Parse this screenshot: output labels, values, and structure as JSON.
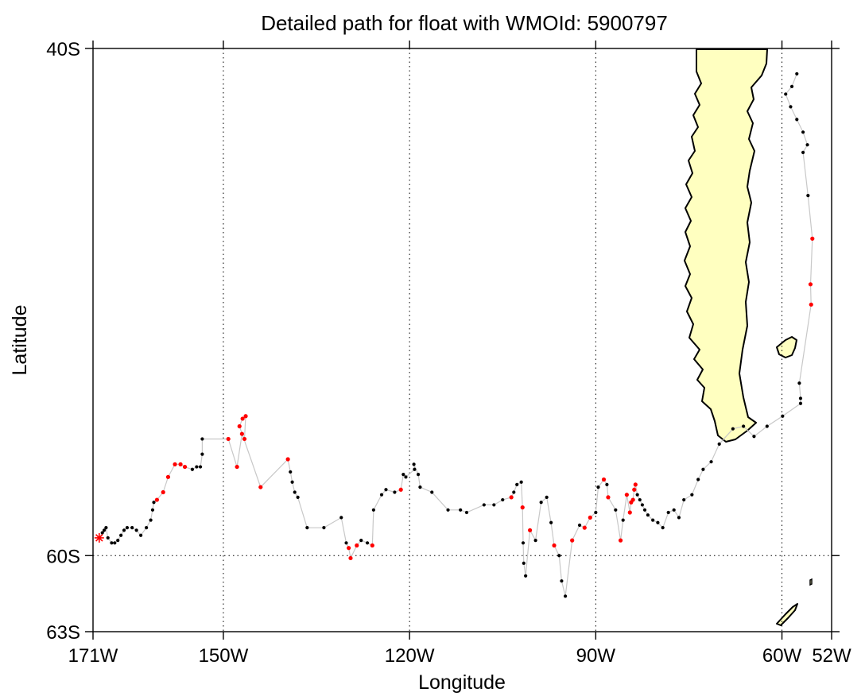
{
  "chart_data": {
    "type": "scatter",
    "title": "Detailed path for float with WMOId: 5900797",
    "xlabel": "Longitude",
    "ylabel": "Latitude",
    "xlim": [
      -171,
      -52
    ],
    "ylim": [
      -63,
      -40
    ],
    "x_ticks": [
      {
        "value": -171,
        "label": "171W"
      },
      {
        "value": -150,
        "label": "150W"
      },
      {
        "value": -120,
        "label": "120W"
      },
      {
        "value": -90,
        "label": "90W"
      },
      {
        "value": -60,
        "label": "60W"
      },
      {
        "value": -52,
        "label": "52W"
      }
    ],
    "y_ticks": [
      {
        "value": -40,
        "label": "40S"
      },
      {
        "value": -60,
        "label": "60S"
      },
      {
        "value": -63,
        "label": "63S"
      }
    ],
    "grid": "dotted",
    "colors": {
      "land": "#ffffc0",
      "coast": "#000000",
      "track_line": "#c8c8c8",
      "profile": "#000000",
      "profile_flagged": "#ff0000",
      "start_marker": "#ff0000"
    },
    "start": {
      "lon": -170,
      "lat": -59.3,
      "marker": "asterisk"
    },
    "track": [
      [
        -170.0,
        -59.3,
        "k"
      ],
      [
        -169.5,
        -59.1,
        "k"
      ],
      [
        -169.2,
        -59.0,
        "k"
      ],
      [
        -168.9,
        -58.9,
        "k"
      ],
      [
        -168.6,
        -59.3,
        "k"
      ],
      [
        -168.0,
        -59.5,
        "k"
      ],
      [
        -167.5,
        -59.5,
        "k"
      ],
      [
        -167.0,
        -59.4,
        "k"
      ],
      [
        -166.5,
        -59.2,
        "k"
      ],
      [
        -166.0,
        -59.0,
        "k"
      ],
      [
        -165.5,
        -58.9,
        "k"
      ],
      [
        -164.7,
        -58.9,
        "k"
      ],
      [
        -164.0,
        -59.0,
        "k"
      ],
      [
        -163.3,
        -59.2,
        "k"
      ],
      [
        -162.4,
        -58.9,
        "k"
      ],
      [
        -161.7,
        -58.6,
        "k"
      ],
      [
        -161.4,
        -58.2,
        "k"
      ],
      [
        -161.2,
        -57.9,
        "k"
      ],
      [
        -160.7,
        -57.8,
        "r"
      ],
      [
        -159.7,
        -57.5,
        "r"
      ],
      [
        -158.9,
        -56.9,
        "r"
      ],
      [
        -157.8,
        -56.4,
        "r"
      ],
      [
        -156.9,
        -56.4,
        "r"
      ],
      [
        -156.2,
        -56.5,
        "r"
      ],
      [
        -155.0,
        -56.6,
        "k"
      ],
      [
        -154.3,
        -56.5,
        "k"
      ],
      [
        -153.7,
        -56.5,
        "k"
      ],
      [
        -153.4,
        -56.0,
        "k"
      ],
      [
        -153.4,
        -55.4,
        "k"
      ],
      [
        -149.2,
        -55.4,
        "r"
      ],
      [
        -147.8,
        -56.5,
        "r"
      ],
      [
        -147.0,
        -55.2,
        "r"
      ],
      [
        -146.6,
        -55.4,
        "r"
      ],
      [
        -146.4,
        -54.5,
        "r"
      ],
      [
        -146.9,
        -54.6,
        "r"
      ],
      [
        -147.4,
        -54.9,
        "r"
      ],
      [
        -144.0,
        -57.3,
        "r"
      ],
      [
        -139.6,
        -56.2,
        "r"
      ],
      [
        -139.2,
        -56.7,
        "k"
      ],
      [
        -138.9,
        -57.1,
        "k"
      ],
      [
        -138.5,
        -57.5,
        "k"
      ],
      [
        -138.0,
        -57.7,
        "k"
      ],
      [
        -136.5,
        -58.9,
        "k"
      ],
      [
        -133.8,
        -58.9,
        "k"
      ],
      [
        -131.0,
        -58.5,
        "k"
      ],
      [
        -130.2,
        -59.5,
        "k"
      ],
      [
        -129.8,
        -59.7,
        "r"
      ],
      [
        -129.5,
        -60.1,
        "r"
      ],
      [
        -128.5,
        -59.6,
        "r"
      ],
      [
        -127.8,
        -59.4,
        "k"
      ],
      [
        -126.8,
        -59.5,
        "k"
      ],
      [
        -126.0,
        -59.6,
        "r"
      ],
      [
        -125.8,
        -58.2,
        "k"
      ],
      [
        -124.5,
        -57.6,
        "k"
      ],
      [
        -123.8,
        -57.4,
        "k"
      ],
      [
        -122.4,
        -57.5,
        "k"
      ],
      [
        -121.4,
        -57.4,
        "r"
      ],
      [
        -121.0,
        -56.8,
        "k"
      ],
      [
        -120.6,
        -56.9,
        "k"
      ],
      [
        -119.2,
        -56.6,
        "k"
      ],
      [
        -119.3,
        -56.4,
        "k"
      ],
      [
        -118.6,
        -56.8,
        "k"
      ],
      [
        -118.3,
        -57.3,
        "k"
      ],
      [
        -116.4,
        -57.5,
        "k"
      ],
      [
        -113.8,
        -58.2,
        "k"
      ],
      [
        -111.8,
        -58.2,
        "k"
      ],
      [
        -110.8,
        -58.3,
        "k"
      ],
      [
        -108.0,
        -58.0,
        "k"
      ],
      [
        -106.4,
        -58.0,
        "k"
      ],
      [
        -105.0,
        -57.8,
        "k"
      ],
      [
        -103.6,
        -57.7,
        "r"
      ],
      [
        -103.2,
        -57.5,
        "k"
      ],
      [
        -102.7,
        -57.2,
        "k"
      ],
      [
        -102.0,
        -57.1,
        "k"
      ],
      [
        -101.8,
        -58.1,
        "r"
      ],
      [
        -101.7,
        -59.5,
        "k"
      ],
      [
        -101.6,
        -60.3,
        "k"
      ],
      [
        -101.3,
        -60.8,
        "k"
      ],
      [
        -100.6,
        -59.0,
        "r"
      ],
      [
        -99.7,
        -59.4,
        "k"
      ],
      [
        -98.8,
        -57.9,
        "k"
      ],
      [
        -97.9,
        -57.7,
        "k"
      ],
      [
        -97.2,
        -58.7,
        "k"
      ],
      [
        -96.7,
        -59.6,
        "r"
      ],
      [
        -95.9,
        -60.0,
        "k"
      ],
      [
        -95.5,
        -61.0,
        "k"
      ],
      [
        -94.9,
        -61.6,
        "k"
      ],
      [
        -93.8,
        -59.4,
        "r"
      ],
      [
        -92.6,
        -58.8,
        "k"
      ],
      [
        -91.8,
        -58.9,
        "r"
      ],
      [
        -90.9,
        -58.5,
        "r"
      ],
      [
        -90.0,
        -58.3,
        "k"
      ],
      [
        -89.6,
        -57.3,
        "k"
      ],
      [
        -88.7,
        -57.0,
        "r"
      ],
      [
        -88.2,
        -57.2,
        "k"
      ],
      [
        -88.0,
        -57.7,
        "r"
      ],
      [
        -86.8,
        -58.2,
        "k"
      ],
      [
        -86.0,
        -59.4,
        "r"
      ],
      [
        -85.6,
        -58.6,
        "k"
      ],
      [
        -85.0,
        -57.6,
        "r"
      ],
      [
        -84.5,
        -58.3,
        "r"
      ],
      [
        -84.3,
        -57.9,
        "r"
      ],
      [
        -84.0,
        -57.8,
        "r"
      ],
      [
        -83.8,
        -57.4,
        "r"
      ],
      [
        -83.6,
        -57.2,
        "r"
      ],
      [
        -83.3,
        -57.6,
        "k"
      ],
      [
        -82.9,
        -57.8,
        "k"
      ],
      [
        -82.5,
        -58.0,
        "k"
      ],
      [
        -82.1,
        -58.2,
        "k"
      ],
      [
        -81.6,
        -58.4,
        "k"
      ],
      [
        -80.8,
        -58.6,
        "k"
      ],
      [
        -80.0,
        -58.7,
        "k"
      ],
      [
        -79.2,
        -58.9,
        "k"
      ],
      [
        -78.3,
        -58.3,
        "k"
      ],
      [
        -77.4,
        -58.2,
        "k"
      ],
      [
        -76.6,
        -58.5,
        "k"
      ],
      [
        -75.8,
        -57.8,
        "k"
      ],
      [
        -74.5,
        -57.6,
        "k"
      ],
      [
        -73.5,
        -57.0,
        "k"
      ],
      [
        -72.7,
        -56.6,
        "k"
      ],
      [
        -71.4,
        -56.3,
        "k"
      ],
      [
        -70.1,
        -55.6,
        "k"
      ],
      [
        -67.9,
        -55.0,
        "k"
      ],
      [
        -66.2,
        -54.9,
        "k"
      ],
      [
        -64.5,
        -55.3,
        "k"
      ],
      [
        -62.4,
        -54.9,
        "k"
      ],
      [
        -59.9,
        -54.5,
        "k"
      ],
      [
        -57.0,
        -54.0,
        "k"
      ],
      [
        -57.0,
        -53.8,
        "k"
      ],
      [
        -57.2,
        -53.2,
        "k"
      ],
      [
        -55.3,
        -50.1,
        "r"
      ],
      [
        -55.4,
        -49.3,
        "r"
      ],
      [
        -55.1,
        -47.5,
        "r"
      ],
      [
        -55.8,
        -45.8,
        "k"
      ],
      [
        -56.6,
        -44.1,
        "k"
      ],
      [
        -55.9,
        -43.8,
        "k"
      ],
      [
        -56.6,
        -43.3,
        "k"
      ],
      [
        -57.6,
        -42.8,
        "k"
      ],
      [
        -58.6,
        -42.3,
        "k"
      ],
      [
        -59.4,
        -41.8,
        "k"
      ],
      [
        -58.4,
        -41.5,
        "k"
      ],
      [
        -57.6,
        -41.0,
        "k"
      ]
    ]
  }
}
